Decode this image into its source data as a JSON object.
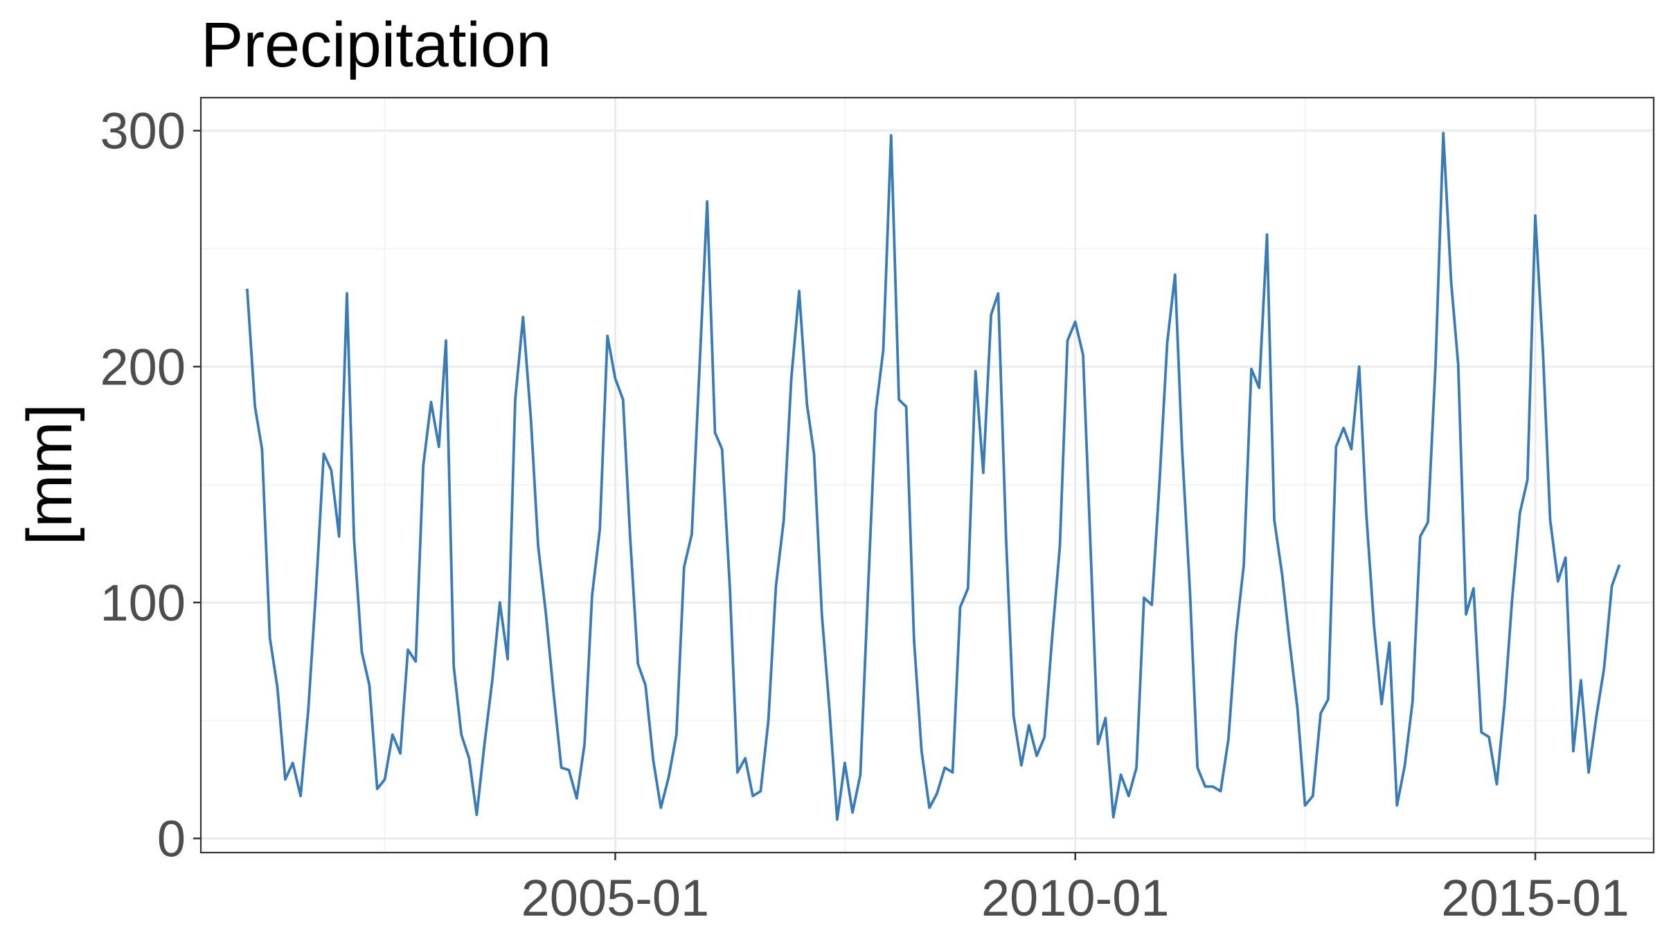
{
  "colors": {
    "series": "#3a7ab5",
    "background": "#ffffff"
  },
  "chart_data": {
    "type": "line",
    "title": "Precipitation",
    "xlabel": "",
    "ylabel": "[mm]",
    "xlim": [
      "2000-07-01",
      "2016-04-15"
    ],
    "ylim": [
      -6,
      314
    ],
    "y_ticks": [
      0,
      100,
      200,
      300
    ],
    "y_tick_labels": [
      "0",
      "100",
      "200",
      "300"
    ],
    "x_ticks": [
      "2005-01-01",
      "2010-01-01",
      "2015-01-01"
    ],
    "x_tick_labels": [
      "2005-01",
      "2010-01",
      "2015-01"
    ],
    "x_minor_ticks": [
      "2002-07-01",
      "2007-07-01",
      "2012-07-01"
    ],
    "grid": true,
    "legend": "none",
    "series": [
      {
        "start": "2001-01",
        "values": [
          233,
          183,
          165,
          85,
          64,
          25,
          32,
          18,
          55,
          105,
          163,
          156,
          128,
          231,
          127,
          79,
          65,
          21,
          25,
          44,
          36,
          80,
          75,
          158,
          185,
          166,
          211,
          73,
          44,
          34,
          10,
          40,
          67,
          100,
          76,
          186,
          221,
          178,
          124,
          95,
          62,
          30,
          29,
          17,
          40,
          103,
          131,
          213,
          195,
          186,
          128,
          74,
          65,
          33,
          13,
          26,
          44,
          115,
          129,
          198,
          270,
          172,
          165,
          106,
          28,
          34,
          18,
          20,
          50,
          107,
          135,
          195,
          232,
          184,
          163,
          95,
          55,
          8,
          32,
          11,
          27,
          104,
          181,
          207,
          298,
          186,
          183,
          84,
          37,
          13,
          19,
          30,
          28,
          98,
          106,
          198,
          155,
          222,
          231,
          128,
          52,
          31,
          48,
          35,
          43,
          85,
          124,
          211,
          219,
          205,
          128,
          40,
          51,
          9,
          27,
          18,
          30,
          102,
          99,
          150,
          210,
          239,
          165,
          105,
          30,
          22,
          22,
          20,
          42,
          86,
          116,
          199,
          191,
          256,
          135,
          112,
          83,
          55,
          14,
          18,
          53,
          59,
          166,
          174,
          165,
          200,
          138,
          90,
          57,
          83,
          14,
          31,
          58,
          128,
          134,
          201,
          299,
          236,
          201,
          95,
          106,
          45,
          43,
          23,
          57,
          101,
          138,
          152,
          264,
          205,
          135,
          109,
          119,
          37,
          67,
          28,
          52,
          72,
          107,
          116
        ]
      }
    ]
  }
}
